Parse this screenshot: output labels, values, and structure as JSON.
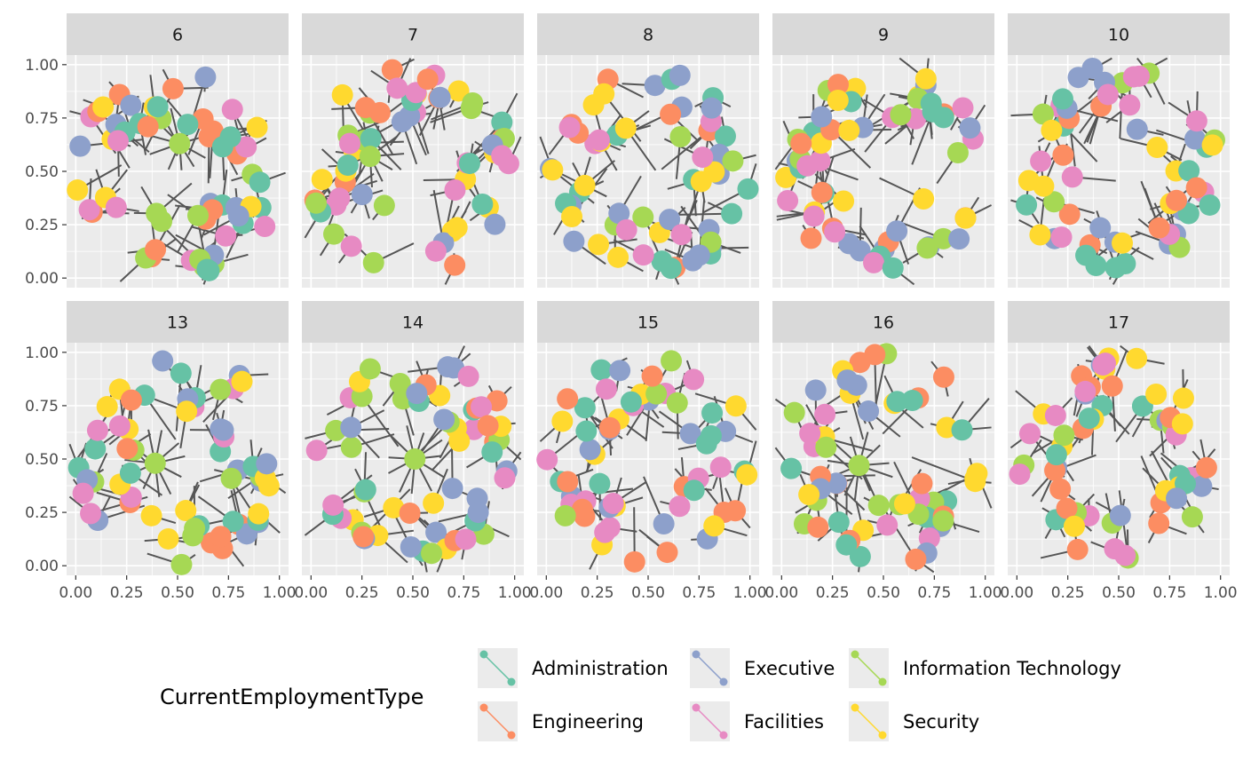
{
  "chart_data": {
    "type": "scatter",
    "subtype": "faceted-network-graph",
    "title": "",
    "xlabel": "",
    "ylabel": "",
    "xlim": [
      0,
      1
    ],
    "ylim": [
      0,
      1
    ],
    "x_ticks": [
      "0.00",
      "0.25",
      "0.50",
      "0.75",
      "1.00"
    ],
    "y_ticks": [
      "0.00",
      "0.25",
      "0.50",
      "0.75",
      "1.00"
    ],
    "grid": true,
    "facets": [
      "6",
      "7",
      "8",
      "9",
      "10",
      "13",
      "14",
      "15",
      "16",
      "17"
    ],
    "nodes_per_facet": 58,
    "hubs_per_facet": [
      [
        {
          "x": 0.51,
          "y": 0.63
        }
      ],
      [
        {
          "x": 0.29,
          "y": 0.57
        }
      ],
      [],
      [],
      [],
      [
        {
          "x": 0.39,
          "y": 0.48
        }
      ],
      [
        {
          "x": 0.51,
          "y": 0.5
        }
      ],
      [],
      [
        {
          "x": 0.38,
          "y": 0.47
        }
      ],
      []
    ],
    "legend": {
      "title": "CurrentEmploymentType",
      "position": "bottom",
      "entries": [
        {
          "label": "Administration",
          "color": "#66c2a5"
        },
        {
          "label": "Engineering",
          "color": "#fc8d62"
        },
        {
          "label": "Executive",
          "color": "#8da0cb"
        },
        {
          "label": "Facilities",
          "color": "#e78ac3"
        },
        {
          "label": "Information Technology",
          "color": "#a6d854"
        },
        {
          "label": "Security",
          "color": "#ffd92f"
        }
      ]
    },
    "colors": {
      "panel": "#ebebeb",
      "strip": "#d9d9d9",
      "grid": "#ffffff",
      "edge": "#555555"
    }
  }
}
